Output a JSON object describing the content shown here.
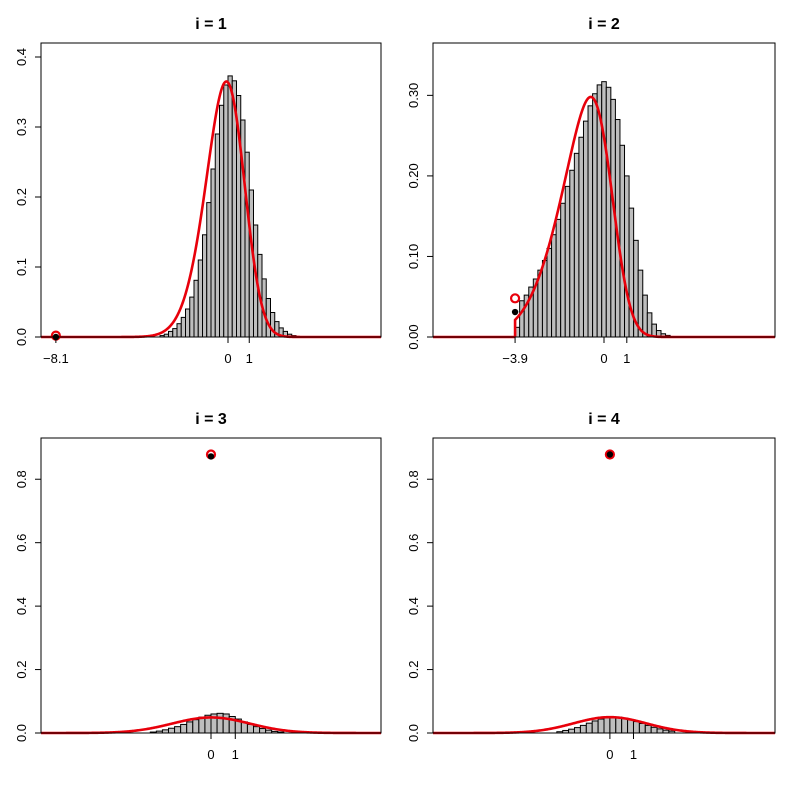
{
  "chart_data": [
    {
      "type": "histogram",
      "title": "i = 1",
      "xlim": [
        -8.8,
        7.2
      ],
      "ylim": [
        0,
        0.42
      ],
      "x_ticks": [
        {
          "value": -8.1,
          "label": "−8.1"
        },
        {
          "value": 0,
          "label": "0"
        },
        {
          "value": 1,
          "label": "1"
        }
      ],
      "y_ticks": [
        {
          "value": 0,
          "label": "0.0"
        },
        {
          "value": 0.1,
          "label": "0.1"
        },
        {
          "value": 0.2,
          "label": "0.2"
        },
        {
          "value": 0.3,
          "label": "0.3"
        },
        {
          "value": 0.4,
          "label": "0.4"
        }
      ],
      "bins": {
        "start": -3.2,
        "width": 0.2,
        "heights": [
          0.002,
          0.004,
          0.008,
          0.012,
          0.019,
          0.028,
          0.04,
          0.057,
          0.081,
          0.11,
          0.146,
          0.192,
          0.24,
          0.29,
          0.331,
          0.36,
          0.373,
          0.366,
          0.345,
          0.31,
          0.264,
          0.21,
          0.16,
          0.118,
          0.083,
          0.055,
          0.035,
          0.022,
          0.013,
          0.008,
          0.004,
          0.002
        ]
      },
      "curve": {
        "type": "skew-normal",
        "loc": 0.6,
        "scale": 1.25,
        "shape": -1.5,
        "peak": 0.365,
        "x_range": [
          -8.8,
          7.2
        ]
      },
      "curve_color": "#e8000b",
      "bar_fill": "#bebebe",
      "point": {
        "x": -8.1,
        "empirical": 0.0,
        "model": 0.002
      }
    },
    {
      "type": "histogram",
      "title": "i = 2",
      "xlim": [
        -7.5,
        7.5
      ],
      "ylim": [
        0,
        0.365
      ],
      "x_ticks": [
        {
          "value": -3.9,
          "label": "−3.9"
        },
        {
          "value": 0,
          "label": "0"
        },
        {
          "value": 1,
          "label": "1"
        }
      ],
      "y_ticks": [
        {
          "value": 0,
          "label": "0.00"
        },
        {
          "value": 0.1,
          "label": "0.10"
        },
        {
          "value": 0.2,
          "label": "0.20"
        },
        {
          "value": 0.3,
          "label": "0.30"
        }
      ],
      "bins": {
        "start": -3.9,
        "width": 0.2,
        "heights": [
          0.012,
          0.045,
          0.052,
          0.062,
          0.072,
          0.083,
          0.095,
          0.11,
          0.127,
          0.146,
          0.166,
          0.187,
          0.207,
          0.228,
          0.248,
          0.268,
          0.287,
          0.302,
          0.313,
          0.317,
          0.31,
          0.295,
          0.27,
          0.238,
          0.2,
          0.16,
          0.12,
          0.083,
          0.052,
          0.03,
          0.016,
          0.008,
          0.004,
          0.002
        ]
      },
      "curve": {
        "type": "skew-normal",
        "loc": 0.3,
        "scale": 1.75,
        "shape": -2.5,
        "peak": 0.298,
        "x_range": [
          -3.9,
          7.5
        ]
      },
      "curve_color": "#e8000b",
      "bar_fill": "#bebebe",
      "point": {
        "x": -3.9,
        "empirical": 0.031,
        "model": 0.048
      }
    },
    {
      "type": "histogram",
      "title": "i = 3",
      "xlim": [
        -7.0,
        7.0
      ],
      "ylim": [
        0,
        0.93
      ],
      "x_ticks": [
        {
          "value": 0,
          "label": "0"
        },
        {
          "value": 1,
          "label": "1"
        }
      ],
      "y_ticks": [
        {
          "value": 0,
          "label": "0.0"
        },
        {
          "value": 0.2,
          "label": "0.2"
        },
        {
          "value": 0.4,
          "label": "0.4"
        },
        {
          "value": 0.6,
          "label": "0.6"
        },
        {
          "value": 0.8,
          "label": "0.8"
        }
      ],
      "bins": {
        "start": -2.5,
        "width": 0.25,
        "heights": [
          0.003,
          0.006,
          0.01,
          0.015,
          0.02,
          0.027,
          0.035,
          0.042,
          0.05,
          0.056,
          0.06,
          0.062,
          0.06,
          0.052,
          0.044,
          0.035,
          0.027,
          0.02,
          0.014,
          0.009,
          0.005,
          0.003
        ]
      },
      "curve": {
        "type": "normal",
        "mean": 0,
        "sd": 1.6,
        "peak": 0.049,
        "x_range": [
          -7.0,
          7.0
        ]
      },
      "curve_color": "#e8000b",
      "bar_fill": "#bebebe",
      "point": {
        "x": 0,
        "empirical": 0.872,
        "model": 0.878
      }
    },
    {
      "type": "histogram",
      "title": "i = 4",
      "xlim": [
        -7.5,
        7.0
      ],
      "ylim": [
        0,
        0.93
      ],
      "x_ticks": [
        {
          "value": 0,
          "label": "0"
        },
        {
          "value": 1,
          "label": "1"
        }
      ],
      "y_ticks": [
        {
          "value": 0,
          "label": "0.0"
        },
        {
          "value": 0.2,
          "label": "0.2"
        },
        {
          "value": 0.4,
          "label": "0.4"
        },
        {
          "value": 0.6,
          "label": "0.6"
        },
        {
          "value": 0.8,
          "label": "0.8"
        }
      ],
      "bins": {
        "start": -2.25,
        "width": 0.25,
        "heights": [
          0.004,
          0.008,
          0.012,
          0.017,
          0.024,
          0.031,
          0.038,
          0.044,
          0.048,
          0.05,
          0.05,
          0.047,
          0.042,
          0.036,
          0.03,
          0.024,
          0.018,
          0.013,
          0.009,
          0.006
        ]
      },
      "curve": {
        "type": "normal",
        "mean": 0,
        "sd": 1.55,
        "peak": 0.05,
        "x_range": [
          -7.5,
          7.0
        ]
      },
      "curve_color": "#e8000b",
      "bar_fill": "#bebebe",
      "point": {
        "x": 0,
        "empirical": 0.878,
        "model": 0.878
      }
    }
  ]
}
